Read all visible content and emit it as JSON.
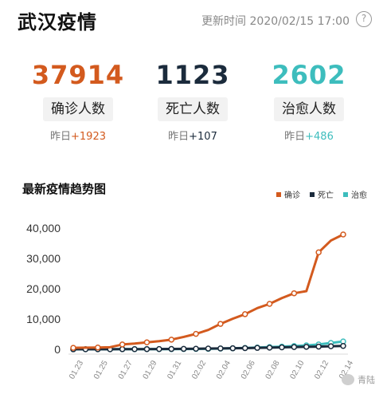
{
  "header": {
    "title": "武汉疫情",
    "update_label": "更新时间 2020/02/15 17:00",
    "help_icon": "question-circle-icon",
    "help_glyph": "?"
  },
  "stats": [
    {
      "value": "37914",
      "label": "确诊人数",
      "delta_prefix": "昨日",
      "delta": "+1923",
      "color": "#d35a1e"
    },
    {
      "value": "1123",
      "label": "死亡人数",
      "delta_prefix": "昨日",
      "delta": "+107",
      "color": "#1b2b3c"
    },
    {
      "value": "2602",
      "label": "治愈人数",
      "delta_prefix": "昨日",
      "delta": "+486",
      "color": "#3dbdbd"
    }
  ],
  "watermark": {
    "text": "青陆",
    "icon": "wechat-icon"
  },
  "chart_data": {
    "type": "line",
    "title": "最新疫情趋势图",
    "xlabel": "",
    "ylabel": "",
    "legend_position": "top-right",
    "grid": false,
    "ylim": [
      0,
      40000
    ],
    "yticks": [
      "0",
      "10,000",
      "20,000",
      "30,000",
      "40,000"
    ],
    "ytick_values": [
      0,
      10000,
      20000,
      30000,
      40000
    ],
    "x": [
      "01.23",
      "01.24",
      "01.25",
      "01.26",
      "01.27",
      "01.28",
      "01.29",
      "01.30",
      "01.31",
      "02.01",
      "02.02",
      "02.03",
      "02.04",
      "02.05",
      "02.06",
      "02.07",
      "02.08",
      "02.09",
      "02.10",
      "02.11",
      "02.12",
      "02.13",
      "02.14"
    ],
    "xtick_labels": [
      "01.23",
      "01.25",
      "01.27",
      "01.29",
      "01.31",
      "02.02",
      "02.04",
      "02.06",
      "02.08",
      "02.10",
      "02.12",
      "02.14"
    ],
    "series": [
      {
        "name": "确诊",
        "color": "#d35a1e",
        "values": [
          500,
          550,
          600,
          700,
          1600,
          1900,
          2300,
          2700,
          3200,
          4100,
          5100,
          6400,
          8400,
          10100,
          11600,
          13600,
          15000,
          16900,
          18500,
          19200,
          32000,
          35900,
          37900
        ],
        "marker_step": 2
      },
      {
        "name": "死亡",
        "color": "#1b2b3c",
        "values": [
          20,
          25,
          30,
          40,
          50,
          60,
          80,
          100,
          120,
          150,
          200,
          250,
          300,
          350,
          410,
          480,
          550,
          650,
          750,
          830,
          900,
          1020,
          1123
        ],
        "marker_step": 1
      },
      {
        "name": "治愈",
        "color": "#3dbdbd",
        "values": [
          30,
          35,
          40,
          45,
          50,
          55,
          60,
          70,
          80,
          100,
          130,
          170,
          250,
          350,
          450,
          600,
          750,
          900,
          1100,
          1300,
          1600,
          2100,
          2602
        ],
        "marker_step": 1
      }
    ]
  }
}
